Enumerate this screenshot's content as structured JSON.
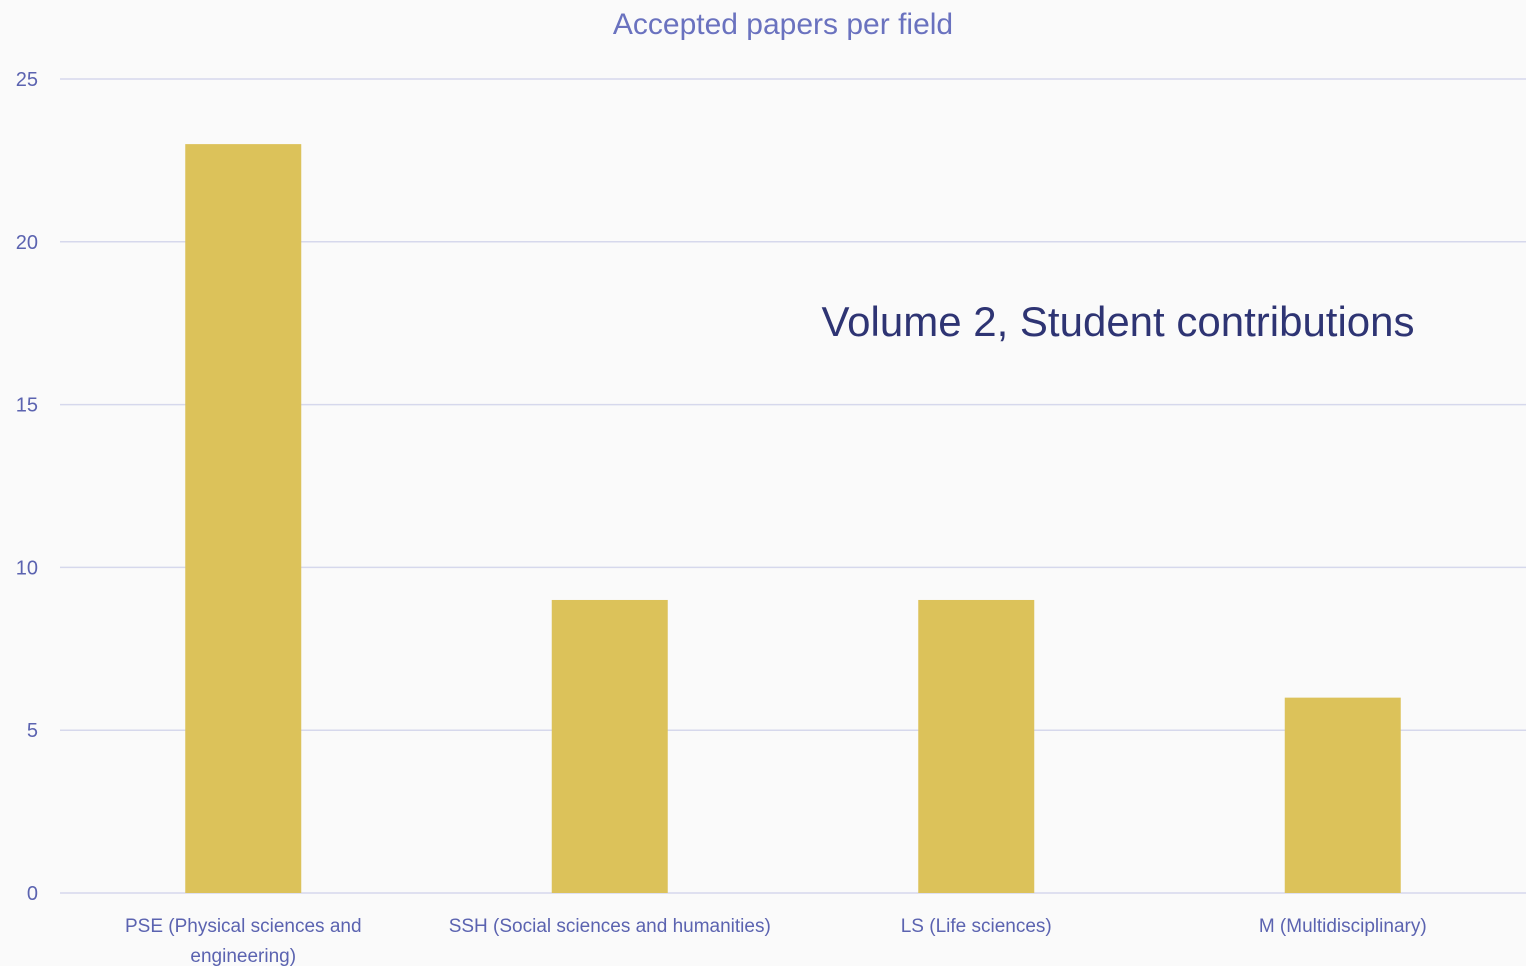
{
  "chart_data": {
    "type": "bar",
    "title": "Accepted papers per field",
    "annotation": "Volume 2, Student contributions",
    "categories": [
      [
        "PSE (Physical sciences and",
        "engineering)"
      ],
      [
        "SSH (Social sciences and humanities)"
      ],
      [
        "LS (Life sciences)"
      ],
      [
        "M (Multidisciplinary)"
      ]
    ],
    "values": [
      23,
      9,
      9,
      6
    ],
    "ylim": [
      0,
      25
    ],
    "yticks": [
      "0",
      "5",
      "10",
      "15",
      "20",
      "25"
    ],
    "grid": true,
    "bar_color": "#dcc25a",
    "xlabel": "",
    "ylabel": ""
  }
}
